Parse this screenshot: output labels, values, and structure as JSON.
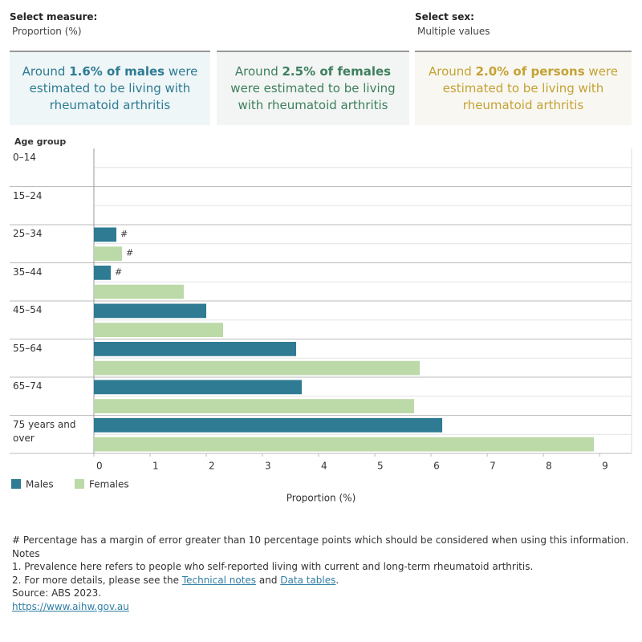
{
  "filters": [
    {
      "label": "Select measure:",
      "value": "Proportion (%)"
    },
    {
      "label": "Select sex:",
      "value": "Multiple values"
    }
  ],
  "cards": [
    {
      "prefix": "Around",
      "highlight": "1.6% of males",
      "suffix": "were estimated to be living with rheumatoid arthritis"
    },
    {
      "prefix": "Around",
      "highlight": "2.5% of females",
      "suffix": "were estimated to be living with rheumatoid arthritis"
    },
    {
      "prefix": "Around",
      "highlight": "2.0% of persons",
      "suffix": "were estimated to be living with rheumatoid arthritis"
    }
  ],
  "chart_data": {
    "type": "bar",
    "orientation": "horizontal",
    "y_axis_title": "Age group",
    "x_axis_title": "Proportion (%)",
    "categories": [
      "0–14",
      "15–24",
      "25–34",
      "35–44",
      "45–54",
      "55–64",
      "65–74",
      "75 years and over"
    ],
    "series": [
      {
        "name": "Males",
        "color": "#2e7b93",
        "values": [
          null,
          null,
          0.4,
          0.3,
          2.0,
          3.6,
          3.7,
          6.2
        ],
        "value_labels": [
          null,
          null,
          "#",
          "#",
          null,
          null,
          null,
          null
        ]
      },
      {
        "name": "Females",
        "color": "#bcd9a8",
        "values": [
          null,
          null,
          0.5,
          1.6,
          2.3,
          5.8,
          5.7,
          8.9
        ],
        "value_labels": [
          null,
          null,
          "#",
          null,
          null,
          null,
          null,
          null
        ]
      }
    ],
    "xlim": [
      0,
      9.57
    ],
    "xticks": [
      0,
      1,
      2,
      3,
      4,
      5,
      6,
      7,
      8,
      9
    ],
    "legend": "bottom-left"
  },
  "notes": {
    "hash_note": "# Percentage has a margin of error greater than 10 percentage points which should be considered when using this information.",
    "heading": "Notes",
    "item1": "1. Prevalence here refers to people who self-reported living with current and long-term rheumatoid arthritis.",
    "item2": {
      "before": "2. For more details, please see the",
      "link1": "Technical notes",
      "between": "and",
      "link2": "Data tables",
      "after": "."
    },
    "source": "Source: ABS 2023.",
    "url": "https://www.aihw.gov.au"
  }
}
